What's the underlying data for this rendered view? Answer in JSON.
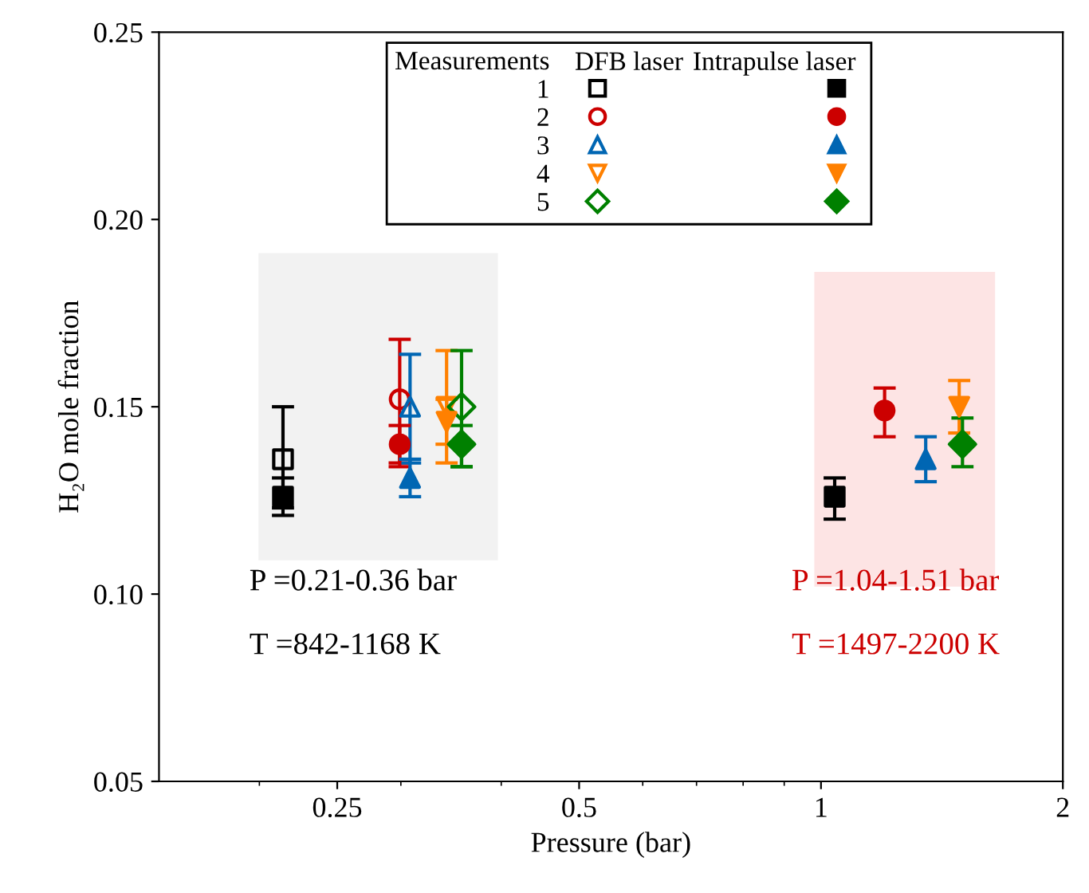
{
  "chart_data": {
    "type": "scatter",
    "xlabel": "Pressure (bar)",
    "ylabel": "H₂O mole fraction",
    "legend_title": "Measurements",
    "log": "x",
    "xlim": [
      0.15,
      2
    ],
    "xticks": [
      0.25,
      0.5,
      1,
      2
    ],
    "ylim": [
      0.05,
      0.25
    ],
    "yticks": [
      {
        "value": 0.05,
        "label": "0.05"
      },
      {
        "value": 0.1,
        "label": "0.10"
      },
      {
        "value": 0.15,
        "label": "0.15"
      },
      {
        "value": 0.2,
        "label": "0.20"
      },
      {
        "value": 0.25,
        "label": "0.25"
      }
    ],
    "grid": false,
    "legend": "top",
    "annotations": [
      "P =0.21-0.36 bar",
      "T =842-1168 K",
      "P =1.04-1.51 bar",
      "T =1497-2200 K",
      "DFB laser",
      "Intrapulse laser"
    ],
    "series": [
      {
        "name": "1",
        "color": "#000000",
        "marker": "square_open",
        "x": [
          0.214
        ],
        "values": [
          0.136
        ],
        "errors": [
          [
            0.123,
            0.15
          ]
        ]
      },
      {
        "name": "2",
        "color": "#cc0000",
        "marker": "circle_open",
        "x": [
          0.299
        ],
        "values": [
          0.152
        ],
        "errors": [
          [
            0.135,
            0.168
          ]
        ]
      },
      {
        "name": "3",
        "color": "#0066b3",
        "marker": "triangle_open",
        "x": [
          0.308
        ],
        "values": [
          0.15
        ],
        "errors": [
          [
            0.135,
            0.164
          ]
        ]
      },
      {
        "name": "4",
        "color": "#ff8000",
        "marker": "triangle_down_open",
        "x": [
          0.342
        ],
        "values": [
          0.15
        ],
        "errors": [
          [
            0.135,
            0.165
          ]
        ]
      },
      {
        "name": "5",
        "color": "#008000",
        "marker": "diamond_open",
        "x": [
          0.357
        ],
        "values": [
          0.15
        ],
        "errors": [
          [
            0.134,
            0.165
          ]
        ]
      },
      {
        "color": "#000000",
        "marker": "square",
        "x": [
          0.214,
          1.04
        ],
        "values": [
          0.126,
          0.126
        ],
        "errors": [
          [
            0.121,
            0.131
          ],
          [
            0.12,
            0.131
          ]
        ]
      },
      {
        "color": "#cc0000",
        "marker": "circle",
        "x": [
          0.299,
          1.2
        ],
        "values": [
          0.14,
          0.149
        ],
        "errors": [
          [
            0.134,
            0.145
          ],
          [
            0.142,
            0.155
          ]
        ]
      },
      {
        "color": "#0066b3",
        "marker": "triangle",
        "x": [
          0.308,
          1.35
        ],
        "values": [
          0.131,
          0.136
        ],
        "errors": [
          [
            0.126,
            0.136
          ],
          [
            0.13,
            0.142
          ]
        ]
      },
      {
        "color": "#ff8000",
        "marker": "triangle_down",
        "x": [
          0.342,
          1.486
        ],
        "values": [
          0.146,
          0.15
        ],
        "errors": [
          [
            0.14,
            0.152
          ],
          [
            0.143,
            0.157
          ]
        ]
      },
      {
        "color": "#008000",
        "marker": "diamond",
        "x": [
          0.357,
          1.5
        ],
        "values": [
          0.14,
          0.14
        ],
        "errors": [
          [
            0.134,
            0.145
          ],
          [
            0.134,
            0.147
          ]
        ]
      }
    ]
  }
}
